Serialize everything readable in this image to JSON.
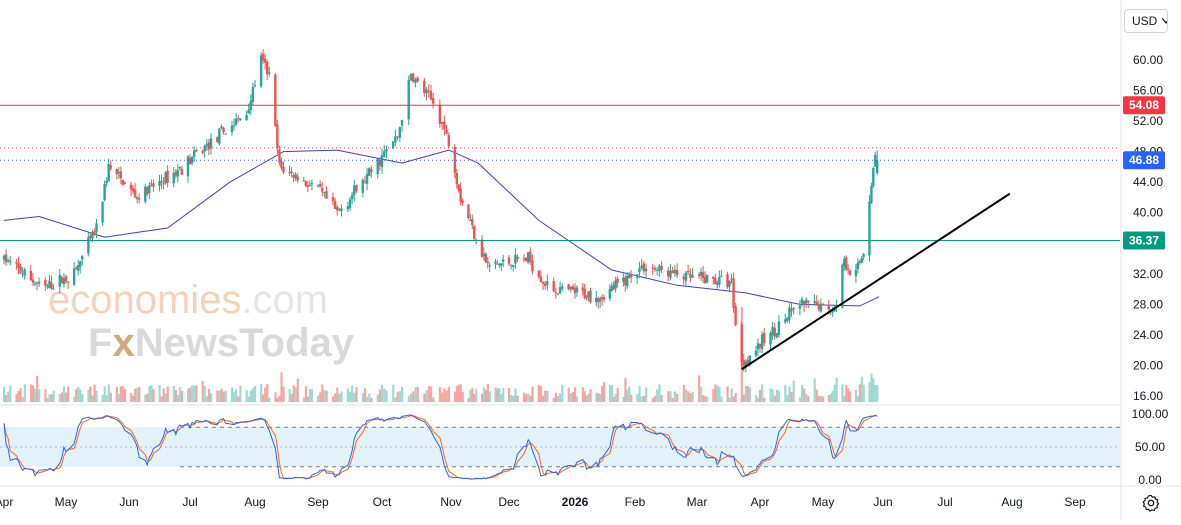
{
  "toolbar": {
    "currency_label": "USD"
  },
  "watermark": {
    "line1_a": "economies",
    "line1_b": ".com",
    "line2_a": "F",
    "line2_b": "x",
    "line2_c": "NewsToday"
  },
  "colors": {
    "up": "#26a69a",
    "down": "#ef5350",
    "ma": "#3f3fbf",
    "resistance": "#f23645",
    "support": "#089981",
    "price": "#2962ff",
    "trendline": "#000000",
    "stoch_k": "#2962ff",
    "stoch_d": "#ff6d00",
    "band": "#e3f1fb"
  },
  "icons": {
    "settings": "gear-icon"
  },
  "chart_data": [
    {
      "type": "candlestick",
      "title": "",
      "y_axis": {
        "ticks": [
          "60.00",
          "56.00",
          "52.00",
          "48.00",
          "44.00",
          "40.00",
          "36.00",
          "32.00",
          "28.00",
          "24.00",
          "20.00",
          "16.00"
        ],
        "range": [
          15,
          63
        ],
        "position": "right"
      },
      "x_axis": {
        "ticks": [
          "Apr",
          "May",
          "Jun",
          "Jul",
          "Aug",
          "Sep",
          "Oct",
          "Nov",
          "Dec",
          "2026",
          "Feb",
          "Mar",
          "Apr",
          "May",
          "Jun",
          "Jul",
          "Aug",
          "Sep"
        ]
      },
      "grid": false,
      "price_waypoints": [
        {
          "x": "2025-04-01",
          "y": 34.0
        },
        {
          "x": "2025-04-20",
          "y": 30.0
        },
        {
          "x": "2025-05-05",
          "y": 32.0
        },
        {
          "x": "2025-05-16",
          "y": 38.0
        },
        {
          "x": "2025-05-22",
          "y": 46.0
        },
        {
          "x": "2025-06-05",
          "y": 42.0
        },
        {
          "x": "2025-06-25",
          "y": 45.5
        },
        {
          "x": "2025-07-10",
          "y": 49.0
        },
        {
          "x": "2025-07-28",
          "y": 53.0
        },
        {
          "x": "2025-08-04",
          "y": 60.0
        },
        {
          "x": "2025-08-08",
          "y": 58.0
        },
        {
          "x": "2025-08-13",
          "y": 46.0
        },
        {
          "x": "2025-09-01",
          "y": 43.0
        },
        {
          "x": "2025-09-10",
          "y": 40.0
        },
        {
          "x": "2025-09-25",
          "y": 45.0
        },
        {
          "x": "2025-10-08",
          "y": 50.0
        },
        {
          "x": "2025-10-14",
          "y": 58.0
        },
        {
          "x": "2025-10-25",
          "y": 54.0
        },
        {
          "x": "2025-11-01",
          "y": 48.5
        },
        {
          "x": "2025-11-06",
          "y": 42.0
        },
        {
          "x": "2025-11-20",
          "y": 33.0
        },
        {
          "x": "2025-12-10",
          "y": 34.0
        },
        {
          "x": "2025-12-20",
          "y": 30.0
        },
        {
          "x": "2026-01-15",
          "y": 29.0
        },
        {
          "x": "2026-02-05",
          "y": 33.0
        },
        {
          "x": "2026-02-25",
          "y": 31.5
        },
        {
          "x": "2026-03-18",
          "y": 31.0
        },
        {
          "x": "2026-03-22",
          "y": 20.0
        },
        {
          "x": "2026-04-20",
          "y": 28.0
        },
        {
          "x": "2026-05-08",
          "y": 27.5
        },
        {
          "x": "2026-05-10",
          "y": 34.0
        },
        {
          "x": "2026-05-18",
          "y": 32.0
        },
        {
          "x": "2026-05-22",
          "y": 35.0
        },
        {
          "x": "2026-05-25",
          "y": 42.0
        },
        {
          "x": "2026-05-28",
          "y": 47.5
        },
        {
          "x": "2026-05-29",
          "y": 46.88
        }
      ],
      "moving_average": [
        {
          "x": "2025-04-01",
          "y": 39.0
        },
        {
          "x": "2025-04-18",
          "y": 39.5
        },
        {
          "x": "2025-05-20",
          "y": 36.8
        },
        {
          "x": "2025-06-20",
          "y": 38.0
        },
        {
          "x": "2025-07-20",
          "y": 44.0
        },
        {
          "x": "2025-08-15",
          "y": 48.0
        },
        {
          "x": "2025-09-10",
          "y": 48.2
        },
        {
          "x": "2025-10-10",
          "y": 46.5
        },
        {
          "x": "2025-10-31",
          "y": 48.2
        },
        {
          "x": "2025-11-15",
          "y": 46.5
        },
        {
          "x": "2025-12-15",
          "y": 39.0
        },
        {
          "x": "2026-01-20",
          "y": 32.5
        },
        {
          "x": "2026-02-20",
          "y": 30.5
        },
        {
          "x": "2026-03-25",
          "y": 29.5
        },
        {
          "x": "2026-04-20",
          "y": 28.0
        },
        {
          "x": "2026-05-20",
          "y": 27.8
        },
        {
          "x": "2026-05-30",
          "y": 29.0
        }
      ],
      "horizontal_lines": [
        {
          "y": 54.08,
          "label": "54.08",
          "color": "#f23645",
          "style": "solid"
        },
        {
          "y": 48.5,
          "label": "",
          "color": "#f23645",
          "style": "dotted"
        },
        {
          "y": 46.88,
          "label": "46.88",
          "color": "#2962ff",
          "style": "dotted"
        },
        {
          "y": 36.37,
          "label": "36.37",
          "color": "#089981",
          "style": "solid"
        }
      ],
      "trendline": {
        "start": {
          "x": "2026-03-23",
          "y": 19.5
        },
        "end": {
          "x": "2026-07-31",
          "y": 42.5
        }
      }
    },
    {
      "type": "bar",
      "title": "",
      "series": [
        {
          "values_description": "volume bars colored by candle direction; tallest at Mar 2026 spike"
        }
      ]
    },
    {
      "type": "line",
      "title": "",
      "y_axis": {
        "ticks": [
          "100.00",
          "50.00",
          "0.00"
        ],
        "range": [
          0,
          100
        ]
      },
      "band": [
        20,
        80
      ]
    }
  ]
}
